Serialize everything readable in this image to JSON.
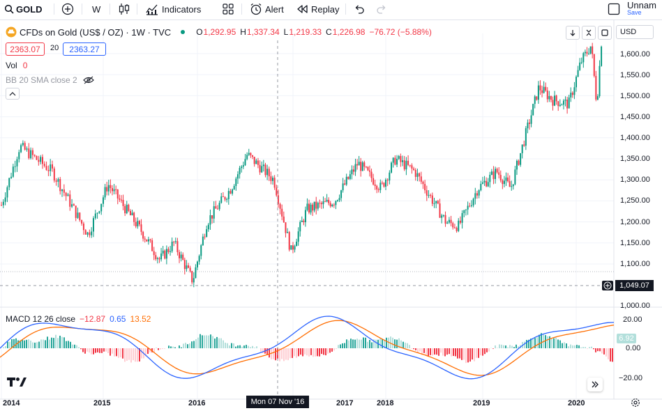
{
  "toolbar": {
    "symbol": "GOLD",
    "interval": "W",
    "indicators_label": "Indicators",
    "alert_label": "Alert",
    "replay_label": "Replay",
    "layout_name": "Unnam",
    "save_label": "Save"
  },
  "legend": {
    "title": "CFDs on Gold (US$ / OZ) · 1W · TVC",
    "open_label": "O",
    "open": "1,292.95",
    "high_label": "H",
    "high": "1,337.34",
    "low_label": "L",
    "low": "1,219.33",
    "close_label": "C",
    "close": "1,226.98",
    "change": "−76.72 (−5.88%)",
    "bid_price": "2363.07",
    "spread": "20",
    "ask_price": "2363.27"
  },
  "indicators": {
    "vol_label": "Vol",
    "vol_value": "0",
    "bb_label": "BB 20 SMA close 2",
    "macd_label": "MACD 12 26 close",
    "macd_hist": "−12.87",
    "macd_line": "0.65",
    "macd_signal": "13.52",
    "macd_last_badge": "6.92"
  },
  "price_scale": {
    "currency": "USD",
    "labels": [
      "1,600.00",
      "1,550.00",
      "1,500.00",
      "1,450.00",
      "1,400.00",
      "1,350.00",
      "1,300.00",
      "1,250.00",
      "1,200.00",
      "1,150.00",
      "1,100.00"
    ],
    "crosshair_price": "1,049.07",
    "bottom_label": "1,000.00"
  },
  "macd_scale": {
    "labels": [
      "20.00",
      "0.00",
      "−20.00"
    ]
  },
  "time_scale": {
    "labels": [
      "2014",
      "2015",
      "2016",
      "2017",
      "2018",
      "2019",
      "2020"
    ],
    "crosshair_time": "Mon 07 Nov '16"
  },
  "colors": {
    "up": "#089981",
    "down": "#f23645",
    "macd": "#2962ff",
    "signal": "#ff6d00",
    "accent": "#2962ff"
  }
}
